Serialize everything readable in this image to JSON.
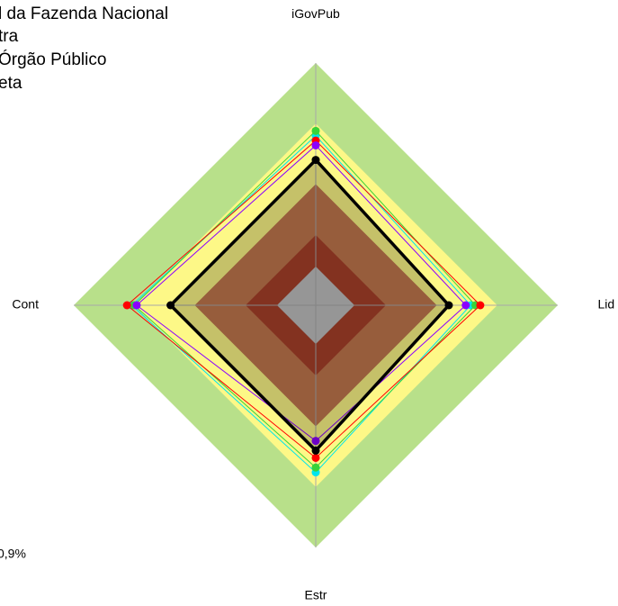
{
  "chart_data": {
    "type": "radar",
    "axes": [
      "iGovPub",
      "Lid",
      "Estr",
      "Cont"
    ],
    "ylim": [
      0,
      1
    ],
    "bands": [
      {
        "to": 1,
        "color": "#b8e08a"
      },
      {
        "to": 0.75,
        "color": "#fdf887"
      },
      {
        "to": 0.5,
        "color": "#c2784d"
      },
      {
        "to": 0.29,
        "color": "#a8402a"
      },
      {
        "to": 0.16,
        "color": "#c0c0c0"
      }
    ],
    "series": [
      {
        "color": "#00e5ee",
        "values": [
          0.7,
          0.64,
          0.69,
          0.76
        ]
      },
      {
        "color": "#39d339",
        "values": [
          0.72,
          0.66,
          0.67,
          0.75
        ]
      },
      {
        "color": "#ff0000",
        "values": [
          0.68,
          0.68,
          0.63,
          0.78
        ]
      },
      {
        "color": "#8b00ff",
        "values": [
          0.66,
          0.62,
          0.56,
          0.74
        ]
      },
      {
        "color": "#000000",
        "values": [
          0.6,
          0.55,
          0.6,
          0.6
        ],
        "fill": true
      }
    ],
    "legend": [
      "l da Fazenda Nacional",
      "tra",
      " Órgão Público",
      "eta"
    ],
    "annotations": [
      ",",
      "0,9%"
    ]
  }
}
